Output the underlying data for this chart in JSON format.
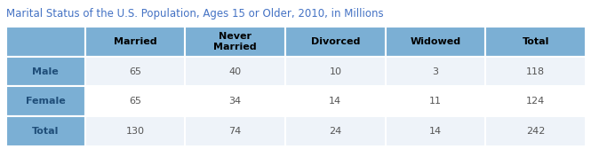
{
  "title": "Marital Status of the U.S. Population, Ages 15 or Older, 2010, in Millions",
  "title_color": "#4472C4",
  "col_headers": [
    "Married",
    "Never\nMarried",
    "Divorced",
    "Widowed",
    "Total"
  ],
  "row_headers": [
    "Male",
    "Female",
    "Total"
  ],
  "data": [
    [
      65,
      40,
      10,
      3,
      118
    ],
    [
      65,
      34,
      14,
      11,
      124
    ],
    [
      130,
      74,
      24,
      14,
      242
    ]
  ],
  "header_bg": "#7BAFD4",
  "row_header_bg": "#7BAFD4",
  "data_bg_light": "#EEF3F9",
  "data_bg_white": "#FFFFFF",
  "border_color": "#FFFFFF",
  "text_color_header": "#000000",
  "text_color_data": "#555555",
  "text_color_row_header": "#1F4E79",
  "text_color_total_row_header": "#1F4E79"
}
